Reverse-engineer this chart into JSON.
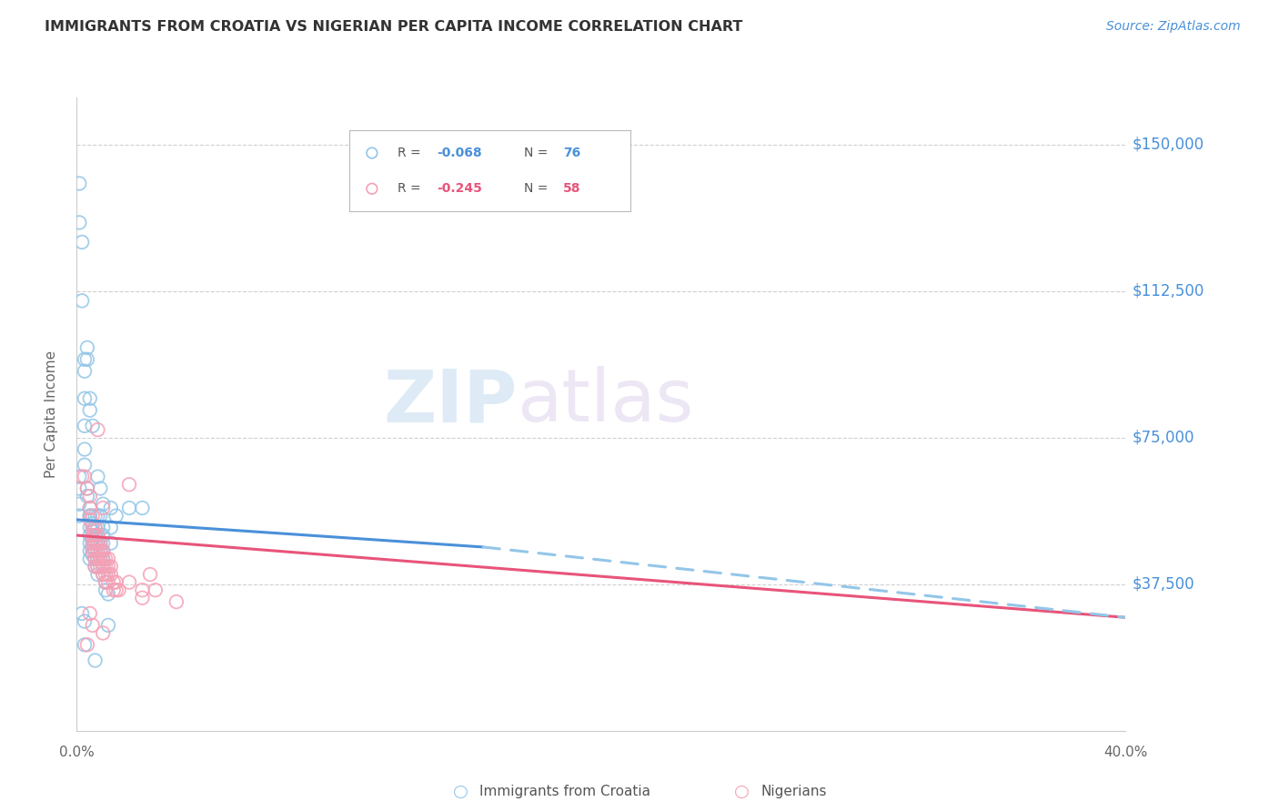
{
  "title": "IMMIGRANTS FROM CROATIA VS NIGERIAN PER CAPITA INCOME CORRELATION CHART",
  "source": "Source: ZipAtlas.com",
  "ylabel": "Per Capita Income",
  "ytick_labels": [
    "$37,500",
    "$75,000",
    "$112,500",
    "$150,000"
  ],
  "ytick_values": [
    37500,
    75000,
    112500,
    150000
  ],
  "ymin": 0,
  "ymax": 162000,
  "xmin": 0.0,
  "xmax": 0.4,
  "watermark_zip": "ZIP",
  "watermark_atlas": "atlas",
  "legend_blue_r": "-0.068",
  "legend_blue_n": "76",
  "legend_pink_r": "-0.245",
  "legend_pink_n": "58",
  "blue_color": "#93c6e8",
  "pink_color": "#f5a0b5",
  "blue_line_color": "#4a90d9",
  "pink_line_color": "#e8547a",
  "dashed_line_color": "#93c6e8",
  "title_color": "#333333",
  "axis_label_color": "#666666",
  "ytick_color": "#4a90d9",
  "source_color": "#4a90d9",
  "grid_color": "#d0d0d0",
  "background_color": "#ffffff",
  "blue_scatter": [
    [
      0.001,
      55000
    ],
    [
      0.001,
      58000
    ],
    [
      0.001,
      62000
    ],
    [
      0.001,
      65000
    ],
    [
      0.002,
      125000
    ],
    [
      0.002,
      110000
    ],
    [
      0.003,
      95000
    ],
    [
      0.003,
      92000
    ],
    [
      0.003,
      85000
    ],
    [
      0.003,
      78000
    ],
    [
      0.003,
      72000
    ],
    [
      0.003,
      68000
    ],
    [
      0.004,
      62000
    ],
    [
      0.004,
      60000
    ],
    [
      0.005,
      57000
    ],
    [
      0.005,
      55000
    ],
    [
      0.005,
      52000
    ],
    [
      0.005,
      50000
    ],
    [
      0.005,
      48000
    ],
    [
      0.005,
      46000
    ],
    [
      0.005,
      44000
    ],
    [
      0.005,
      55000
    ],
    [
      0.006,
      53000
    ],
    [
      0.006,
      51000
    ],
    [
      0.006,
      49000
    ],
    [
      0.006,
      47000
    ],
    [
      0.006,
      45000
    ],
    [
      0.007,
      55000
    ],
    [
      0.007,
      52000
    ],
    [
      0.007,
      50000
    ],
    [
      0.007,
      48000
    ],
    [
      0.007,
      46000
    ],
    [
      0.007,
      44000
    ],
    [
      0.007,
      42000
    ],
    [
      0.008,
      55000
    ],
    [
      0.008,
      52000
    ],
    [
      0.008,
      50000
    ],
    [
      0.008,
      48000
    ],
    [
      0.008,
      44000
    ],
    [
      0.008,
      42000
    ],
    [
      0.008,
      40000
    ],
    [
      0.009,
      48000
    ],
    [
      0.009,
      46000
    ],
    [
      0.009,
      44000
    ],
    [
      0.009,
      55000
    ],
    [
      0.01,
      52000
    ],
    [
      0.01,
      50000
    ],
    [
      0.01,
      48000
    ],
    [
      0.01,
      46000
    ],
    [
      0.01,
      44000
    ],
    [
      0.01,
      42000
    ],
    [
      0.01,
      40000
    ],
    [
      0.011,
      38000
    ],
    [
      0.011,
      36000
    ],
    [
      0.012,
      35000
    ],
    [
      0.013,
      57000
    ],
    [
      0.013,
      52000
    ],
    [
      0.013,
      48000
    ],
    [
      0.015,
      55000
    ],
    [
      0.02,
      57000
    ],
    [
      0.002,
      30000
    ],
    [
      0.003,
      28000
    ],
    [
      0.012,
      27000
    ],
    [
      0.003,
      22000
    ],
    [
      0.007,
      18000
    ],
    [
      0.001,
      140000
    ],
    [
      0.001,
      130000
    ],
    [
      0.004,
      98000
    ],
    [
      0.004,
      95000
    ],
    [
      0.005,
      85000
    ],
    [
      0.005,
      82000
    ],
    [
      0.006,
      78000
    ],
    [
      0.025,
      57000
    ],
    [
      0.008,
      65000
    ],
    [
      0.009,
      62000
    ],
    [
      0.01,
      58000
    ]
  ],
  "pink_scatter": [
    [
      0.002,
      65000
    ],
    [
      0.003,
      65000
    ],
    [
      0.004,
      62000
    ],
    [
      0.005,
      60000
    ],
    [
      0.005,
      57000
    ],
    [
      0.005,
      54000
    ],
    [
      0.006,
      55000
    ],
    [
      0.006,
      52000
    ],
    [
      0.006,
      50000
    ],
    [
      0.006,
      48000
    ],
    [
      0.006,
      46000
    ],
    [
      0.007,
      52000
    ],
    [
      0.007,
      50000
    ],
    [
      0.007,
      48000
    ],
    [
      0.007,
      46000
    ],
    [
      0.007,
      44000
    ],
    [
      0.007,
      42000
    ],
    [
      0.008,
      50000
    ],
    [
      0.008,
      48000
    ],
    [
      0.008,
      46000
    ],
    [
      0.008,
      44000
    ],
    [
      0.008,
      42000
    ],
    [
      0.009,
      48000
    ],
    [
      0.009,
      46000
    ],
    [
      0.009,
      44000
    ],
    [
      0.009,
      42000
    ],
    [
      0.01,
      46000
    ],
    [
      0.01,
      44000
    ],
    [
      0.01,
      42000
    ],
    [
      0.01,
      40000
    ],
    [
      0.011,
      44000
    ],
    [
      0.011,
      42000
    ],
    [
      0.011,
      40000
    ],
    [
      0.011,
      38000
    ],
    [
      0.012,
      44000
    ],
    [
      0.012,
      42000
    ],
    [
      0.012,
      40000
    ],
    [
      0.012,
      38000
    ],
    [
      0.013,
      42000
    ],
    [
      0.013,
      40000
    ],
    [
      0.014,
      38000
    ],
    [
      0.014,
      36000
    ],
    [
      0.015,
      38000
    ],
    [
      0.015,
      36000
    ],
    [
      0.016,
      36000
    ],
    [
      0.02,
      38000
    ],
    [
      0.025,
      36000
    ],
    [
      0.025,
      34000
    ],
    [
      0.03,
      36000
    ],
    [
      0.008,
      77000
    ],
    [
      0.01,
      57000
    ],
    [
      0.02,
      63000
    ],
    [
      0.028,
      40000
    ],
    [
      0.038,
      33000
    ],
    [
      0.005,
      30000
    ],
    [
      0.006,
      27000
    ],
    [
      0.01,
      25000
    ],
    [
      0.004,
      22000
    ]
  ],
  "blue_line_x": [
    0.0,
    0.155
  ],
  "blue_line_y": [
    54000,
    47000
  ],
  "pink_line_x": [
    0.0,
    0.4
  ],
  "pink_line_y": [
    50000,
    29000
  ],
  "dashed_line_x": [
    0.155,
    0.4
  ],
  "dashed_line_y": [
    47000,
    29000
  ]
}
